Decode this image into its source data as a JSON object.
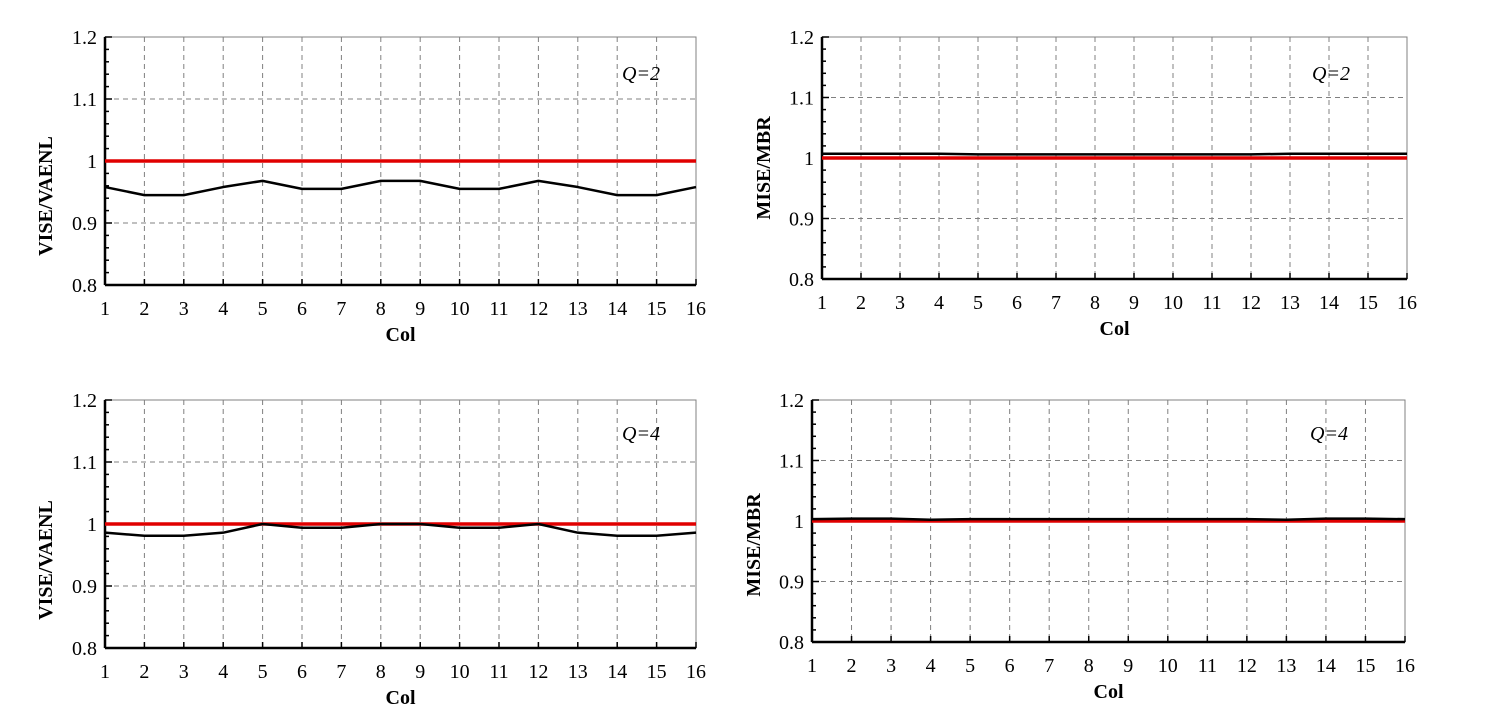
{
  "chart_data": [
    {
      "type": "line",
      "annotation": "Q=2",
      "xlabel": "Col",
      "ylabel": "VISE/VAENL",
      "x": [
        1,
        2,
        3,
        4,
        5,
        6,
        7,
        8,
        9,
        10,
        11,
        12,
        13,
        14,
        15,
        16
      ],
      "ylim": [
        0.8,
        1.2
      ],
      "yticks": [
        "0.8",
        "0.9",
        "1",
        "1.1",
        "1.2"
      ],
      "grid": true,
      "reference_value": 1.0,
      "series": [
        {
          "values": [
            0.958,
            0.945,
            0.945,
            0.958,
            0.968,
            0.955,
            0.955,
            0.968,
            0.968,
            0.955,
            0.955,
            0.968,
            0.958,
            0.945,
            0.945,
            0.958
          ]
        }
      ]
    },
    {
      "type": "line",
      "annotation": "Q=2",
      "xlabel": "Col",
      "ylabel": "MISE/MBR",
      "x": [
        1,
        2,
        3,
        4,
        5,
        6,
        7,
        8,
        9,
        10,
        11,
        12,
        13,
        14,
        15,
        16
      ],
      "ylim": [
        0.8,
        1.2
      ],
      "yticks": [
        "0.8",
        "0.9",
        "1",
        "1.1",
        "1.2"
      ],
      "grid": true,
      "reference_value": 1.0,
      "series": [
        {
          "values": [
            1.007,
            1.007,
            1.007,
            1.007,
            1.006,
            1.006,
            1.006,
            1.006,
            1.006,
            1.006,
            1.006,
            1.006,
            1.007,
            1.007,
            1.007,
            1.007
          ]
        }
      ]
    },
    {
      "type": "line",
      "annotation": "Q=4",
      "xlabel": "Col",
      "ylabel": "VISE/VAENL",
      "x": [
        1,
        2,
        3,
        4,
        5,
        6,
        7,
        8,
        9,
        10,
        11,
        12,
        13,
        14,
        15,
        16
      ],
      "ylim": [
        0.8,
        1.2
      ],
      "yticks": [
        "0.8",
        "0.9",
        "1",
        "1.1",
        "1.2"
      ],
      "grid": true,
      "reference_value": 1.0,
      "series": [
        {
          "values": [
            0.986,
            0.981,
            0.981,
            0.986,
            1.0,
            0.994,
            0.994,
            1.0,
            1.0,
            0.994,
            0.994,
            1.0,
            0.986,
            0.981,
            0.981,
            0.986
          ]
        }
      ]
    },
    {
      "type": "line",
      "annotation": "Q=4",
      "xlabel": "Col",
      "ylabel": "MISE/MBR",
      "x": [
        1,
        2,
        3,
        4,
        5,
        6,
        7,
        8,
        9,
        10,
        11,
        12,
        13,
        14,
        15,
        16
      ],
      "ylim": [
        0.8,
        1.2
      ],
      "yticks": [
        "0.8",
        "0.9",
        "1",
        "1.1",
        "1.2"
      ],
      "grid": true,
      "reference_value": 1.0,
      "series": [
        {
          "values": [
            1.003,
            1.004,
            1.004,
            1.002,
            1.003,
            1.003,
            1.003,
            1.003,
            1.003,
            1.003,
            1.003,
            1.003,
            1.002,
            1.004,
            1.004,
            1.003
          ]
        }
      ]
    }
  ],
  "colors": {
    "reference_line": "#e00000",
    "series_line": "#000000",
    "grid": "#808080",
    "axis": "#000000"
  }
}
